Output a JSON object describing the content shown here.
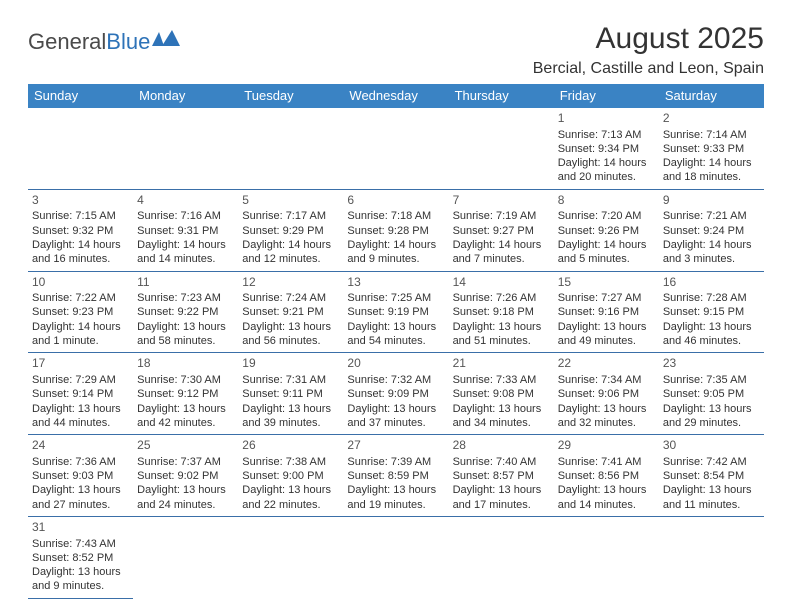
{
  "logo": {
    "text1": "General",
    "text2": "Blue"
  },
  "title": "August 2025",
  "location": "Bercial, Castille and Leon, Spain",
  "colors": {
    "header_bg": "#3a83c4",
    "header_text": "#ffffff",
    "border": "#3a6fa8",
    "logo_blue": "#2e73b8",
    "text": "#333333"
  },
  "weekdays": [
    "Sunday",
    "Monday",
    "Tuesday",
    "Wednesday",
    "Thursday",
    "Friday",
    "Saturday"
  ],
  "leading_blanks": 5,
  "days": [
    {
      "n": "1",
      "sr": "7:13 AM",
      "ss": "9:34 PM",
      "dl": "14 hours and 20 minutes."
    },
    {
      "n": "2",
      "sr": "7:14 AM",
      "ss": "9:33 PM",
      "dl": "14 hours and 18 minutes."
    },
    {
      "n": "3",
      "sr": "7:15 AM",
      "ss": "9:32 PM",
      "dl": "14 hours and 16 minutes."
    },
    {
      "n": "4",
      "sr": "7:16 AM",
      "ss": "9:31 PM",
      "dl": "14 hours and 14 minutes."
    },
    {
      "n": "5",
      "sr": "7:17 AM",
      "ss": "9:29 PM",
      "dl": "14 hours and 12 minutes."
    },
    {
      "n": "6",
      "sr": "7:18 AM",
      "ss": "9:28 PM",
      "dl": "14 hours and 9 minutes."
    },
    {
      "n": "7",
      "sr": "7:19 AM",
      "ss": "9:27 PM",
      "dl": "14 hours and 7 minutes."
    },
    {
      "n": "8",
      "sr": "7:20 AM",
      "ss": "9:26 PM",
      "dl": "14 hours and 5 minutes."
    },
    {
      "n": "9",
      "sr": "7:21 AM",
      "ss": "9:24 PM",
      "dl": "14 hours and 3 minutes."
    },
    {
      "n": "10",
      "sr": "7:22 AM",
      "ss": "9:23 PM",
      "dl": "14 hours and 1 minute."
    },
    {
      "n": "11",
      "sr": "7:23 AM",
      "ss": "9:22 PM",
      "dl": "13 hours and 58 minutes."
    },
    {
      "n": "12",
      "sr": "7:24 AM",
      "ss": "9:21 PM",
      "dl": "13 hours and 56 minutes."
    },
    {
      "n": "13",
      "sr": "7:25 AM",
      "ss": "9:19 PM",
      "dl": "13 hours and 54 minutes."
    },
    {
      "n": "14",
      "sr": "7:26 AM",
      "ss": "9:18 PM",
      "dl": "13 hours and 51 minutes."
    },
    {
      "n": "15",
      "sr": "7:27 AM",
      "ss": "9:16 PM",
      "dl": "13 hours and 49 minutes."
    },
    {
      "n": "16",
      "sr": "7:28 AM",
      "ss": "9:15 PM",
      "dl": "13 hours and 46 minutes."
    },
    {
      "n": "17",
      "sr": "7:29 AM",
      "ss": "9:14 PM",
      "dl": "13 hours and 44 minutes."
    },
    {
      "n": "18",
      "sr": "7:30 AM",
      "ss": "9:12 PM",
      "dl": "13 hours and 42 minutes."
    },
    {
      "n": "19",
      "sr": "7:31 AM",
      "ss": "9:11 PM",
      "dl": "13 hours and 39 minutes."
    },
    {
      "n": "20",
      "sr": "7:32 AM",
      "ss": "9:09 PM",
      "dl": "13 hours and 37 minutes."
    },
    {
      "n": "21",
      "sr": "7:33 AM",
      "ss": "9:08 PM",
      "dl": "13 hours and 34 minutes."
    },
    {
      "n": "22",
      "sr": "7:34 AM",
      "ss": "9:06 PM",
      "dl": "13 hours and 32 minutes."
    },
    {
      "n": "23",
      "sr": "7:35 AM",
      "ss": "9:05 PM",
      "dl": "13 hours and 29 minutes."
    },
    {
      "n": "24",
      "sr": "7:36 AM",
      "ss": "9:03 PM",
      "dl": "13 hours and 27 minutes."
    },
    {
      "n": "25",
      "sr": "7:37 AM",
      "ss": "9:02 PM",
      "dl": "13 hours and 24 minutes."
    },
    {
      "n": "26",
      "sr": "7:38 AM",
      "ss": "9:00 PM",
      "dl": "13 hours and 22 minutes."
    },
    {
      "n": "27",
      "sr": "7:39 AM",
      "ss": "8:59 PM",
      "dl": "13 hours and 19 minutes."
    },
    {
      "n": "28",
      "sr": "7:40 AM",
      "ss": "8:57 PM",
      "dl": "13 hours and 17 minutes."
    },
    {
      "n": "29",
      "sr": "7:41 AM",
      "ss": "8:56 PM",
      "dl": "13 hours and 14 minutes."
    },
    {
      "n": "30",
      "sr": "7:42 AM",
      "ss": "8:54 PM",
      "dl": "13 hours and 11 minutes."
    },
    {
      "n": "31",
      "sr": "7:43 AM",
      "ss": "8:52 PM",
      "dl": "13 hours and 9 minutes."
    }
  ],
  "labels": {
    "sunrise": "Sunrise: ",
    "sunset": "Sunset: ",
    "daylight": "Daylight: "
  }
}
